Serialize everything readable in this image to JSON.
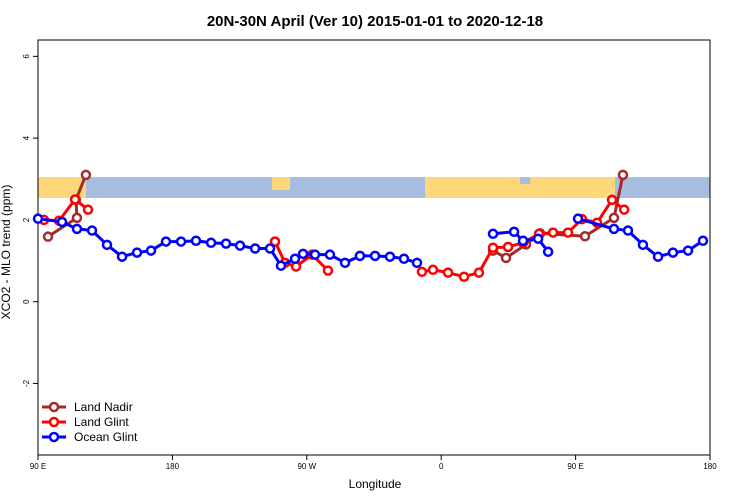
{
  "chart_data": {
    "type": "line",
    "title": "20N-30N April (Ver 10)   2015-01-01 to 2020-12-18",
    "xlabel": "Longitude",
    "ylabel": "XCO2 - MLO trend (ppm)",
    "xlim": [
      90,
      540
    ],
    "ylim": [
      -3.75,
      6.4
    ],
    "xticks": [
      {
        "value": 90,
        "label": "90 E"
      },
      180,
      {
        "value": 270,
        "label": "90 W"
      },
      {
        "value": 360,
        "label": "0"
      },
      {
        "value": 450,
        "label": "90 E"
      },
      {
        "value": 540,
        "label": "180"
      }
    ],
    "yticks": [
      -2,
      0,
      2,
      4,
      6
    ],
    "legend": "bottom-left",
    "series": [
      {
        "name": "Land Nadir",
        "color": "#a52a2a",
        "x": [
          96.7,
          116.1,
          115.4,
          122.1,
          null,
          248.7,
          null,
          394.7,
          403.4,
          416.8,
          426.2,
          456.3,
          475.7,
          481.7
        ],
        "values": [
          1.59,
          2.05,
          2.49,
          3.1,
          null,
          1.47,
          null,
          1.25,
          1.07,
          1.4,
          1.67,
          1.6,
          2.05,
          3.1
        ]
      },
      {
        "name": "Land Glint",
        "color": "#ff0000",
        "x": [
          94,
          104.1,
          114.8,
          123.5,
          null,
          248.7,
          255.4,
          262.8,
          273.5,
          284.2,
          null,
          347.1,
          354.5,
          364.6,
          375.3,
          385.3,
          394.7,
          404.8,
          414.8,
          425.5,
          434.9,
          444.9,
          454.3,
          464.4,
          474.4,
          482.5
        ],
        "values": [
          2.0,
          1.98,
          2.5,
          2.25,
          null,
          1.47,
          0.95,
          0.86,
          1.15,
          0.76,
          null,
          0.73,
          0.78,
          0.71,
          0.61,
          0.71,
          1.32,
          1.34,
          1.44,
          1.66,
          1.69,
          1.69,
          2.02,
          1.93,
          2.49,
          2.25
        ]
      },
      {
        "name": "Ocean Glint",
        "color": "#0000ff",
        "x": [
          90,
          106.1,
          116.1,
          126.2,
          136.2,
          146.3,
          156.3,
          165.7,
          175.7,
          185.8,
          195.8,
          205.9,
          215.9,
          225.3,
          235.4,
          245.4,
          252.7,
          262.1,
          267.5,
          275.5,
          285.5,
          295.6,
          305.6,
          315.7,
          325.7,
          335.1,
          343.8,
          null,
          394.7,
          408.8,
          414.8,
          424.9,
          431.6,
          null,
          451.6,
          475.7,
          485.1,
          495.1,
          505.2,
          515.2,
          525.3,
          535.3
        ],
        "values": [
          2.03,
          1.95,
          1.78,
          1.74,
          1.39,
          1.1,
          1.2,
          1.25,
          1.47,
          1.47,
          1.49,
          1.44,
          1.42,
          1.37,
          1.3,
          1.3,
          0.88,
          1.05,
          1.17,
          1.15,
          1.15,
          0.95,
          1.12,
          1.12,
          1.1,
          1.05,
          0.95,
          null,
          1.66,
          1.71,
          1.49,
          1.54,
          1.22,
          null,
          2.03,
          1.78,
          1.74,
          1.39,
          1.1,
          1.2,
          1.25,
          1.49
        ]
      }
    ]
  }
}
